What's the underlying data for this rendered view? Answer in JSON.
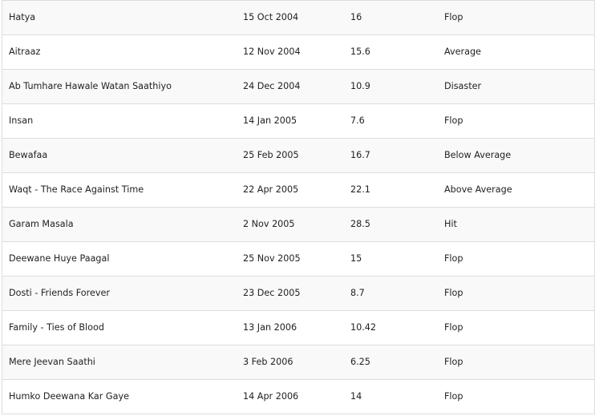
{
  "rows": [
    {
      "film": "Hatya",
      "release": "15 Oct 2004",
      "collection": "16",
      "verdict": "Flop"
    },
    {
      "film": "Aitraaz",
      "release": "12 Nov 2004",
      "collection": "15.6",
      "verdict": "Average"
    },
    {
      "film": "Ab Tumhare Hawale Watan Saathiyo",
      "release": "24 Dec 2004",
      "collection": "10.9",
      "verdict": "Disaster"
    },
    {
      "film": "Insan",
      "release": "14 Jan 2005",
      "collection": "7.6",
      "verdict": "Flop"
    },
    {
      "film": "Bewafaa",
      "release": "25 Feb 2005",
      "collection": "16.7",
      "verdict": "Below Average"
    },
    {
      "film": "Waqt - The Race Against Time",
      "release": "22 Apr 2005",
      "collection": "22.1",
      "verdict": "Above Average"
    },
    {
      "film": "Garam Masala",
      "release": "2 Nov 2005",
      "collection": "28.5",
      "verdict": "Hit"
    },
    {
      "film": "Deewane Huye Paagal",
      "release": "25 Nov 2005",
      "collection": "15",
      "verdict": "Flop"
    },
    {
      "film": "Dosti - Friends Forever",
      "release": "23 Dec 2005",
      "collection": "8.7",
      "verdict": "Flop"
    },
    {
      "film": "Family - Ties of Blood",
      "release": "13 Jan 2006",
      "collection": "10.42",
      "verdict": "Flop"
    },
    {
      "film": "Mere Jeevan Saathi",
      "release": "3 Feb 2006",
      "collection": "6.25",
      "verdict": "Flop"
    },
    {
      "film": "Humko Deewana Kar Gaye",
      "release": "14 Apr 2006",
      "collection": "14",
      "verdict": "Flop"
    }
  ]
}
